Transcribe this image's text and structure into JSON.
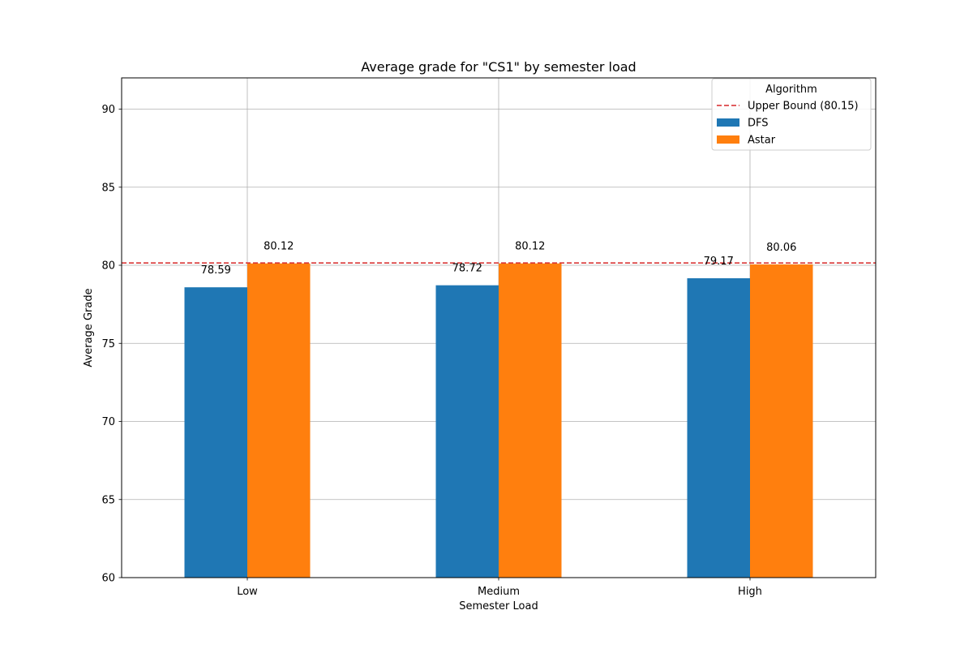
{
  "chart_data": {
    "type": "bar",
    "title": "Average grade for \"CS1\" by semester load",
    "xlabel": "Semester Load",
    "ylabel": "Average Grade",
    "categories": [
      "Low",
      "Medium",
      "High"
    ],
    "series": [
      {
        "name": "DFS",
        "values": [
          78.59,
          78.72,
          79.17
        ],
        "labels": [
          "78.59",
          "78.72",
          "79.17"
        ],
        "color": "#1f77b4"
      },
      {
        "name": "Astar",
        "values": [
          80.12,
          80.12,
          80.06
        ],
        "labels": [
          "80.12",
          "80.12",
          "80.06"
        ],
        "color": "#ff7f0e"
      }
    ],
    "reference_line": {
      "name": "Upper Bound (80.15)",
      "value": 80.15,
      "color": "#d62728",
      "style": "dashed"
    },
    "ylim": [
      60,
      92
    ],
    "yticks": [
      60,
      65,
      70,
      75,
      80,
      85,
      90
    ],
    "grid": true,
    "legend": {
      "title": "Algorithm",
      "placement": "top-right"
    }
  }
}
